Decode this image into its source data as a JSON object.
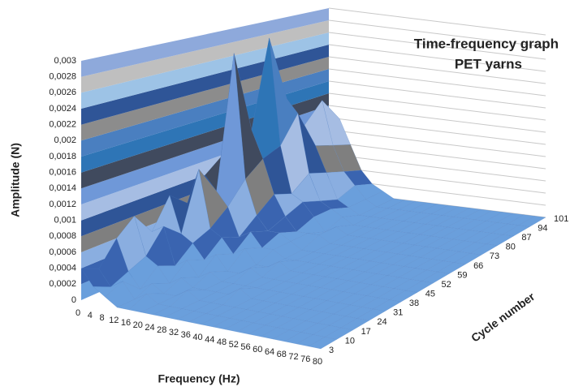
{
  "chart_data": {
    "type": "surface",
    "title": "Time-frequency graph",
    "subtitle": "PET yarns",
    "x_label": "Frequency (Hz)",
    "depth_label": "Cycle number",
    "z_label": "Amplitude (N)",
    "x": [
      0,
      4,
      8,
      12,
      16,
      20,
      24,
      28,
      32,
      36,
      40,
      44,
      48,
      52,
      56,
      60,
      64,
      68,
      72,
      76,
      80
    ],
    "depth": [
      3,
      10,
      17,
      24,
      31,
      38,
      45,
      52,
      59,
      66,
      73,
      80,
      87,
      94,
      101
    ],
    "zlim": [
      0,
      0.003
    ],
    "zticks": [
      0,
      {
        "value": 0.0002,
        "label": "0,0002"
      },
      {
        "value": 0.0004,
        "label": "0,0004"
      },
      {
        "value": 0.0006,
        "label": "0,0006"
      },
      {
        "value": 0.0008,
        "label": "0,0008"
      },
      {
        "value": 0.001,
        "label": "0,001"
      },
      {
        "value": 0.0012,
        "label": "0,0012"
      },
      {
        "value": 0.0014,
        "label": "0,0014"
      },
      {
        "value": 0.0016,
        "label": "0,0016"
      },
      {
        "value": 0.0018,
        "label": "0,0018"
      },
      {
        "value": 0.002,
        "label": "0,002"
      },
      {
        "value": 0.0022,
        "label": "0,0022"
      },
      {
        "value": 0.0024,
        "label": "0,0024"
      },
      {
        "value": 0.0026,
        "label": "0,0026"
      },
      {
        "value": 0.0028,
        "label": "0,0028"
      },
      {
        "value": 0.003,
        "label": "0,003"
      }
    ],
    "band_colors": [
      "#6a9fdc",
      "#3a64b0",
      "#8aaee0",
      "#7f7f7f",
      "#2f5597",
      "#a6bde3",
      "#6f98d8",
      "#404a5e",
      "#2e75b6",
      "#4a7fc0",
      "#8c8c8c",
      "#2f5597",
      "#9dc3e6",
      "#bfbfbf",
      "#8ea9db"
    ],
    "values": [
      [
        0.0004,
        0.0002,
        0.0001,
        0,
        0,
        0,
        0,
        0,
        0,
        0,
        0,
        0,
        0,
        0,
        0,
        0,
        0,
        0,
        0,
        0,
        0
      ],
      [
        0.0003,
        0.0001,
        0.0002,
        0,
        0.0001,
        0,
        0,
        0,
        0,
        0,
        0,
        0,
        0,
        0,
        0,
        0,
        0,
        0,
        0,
        0,
        0
      ],
      [
        0.0006,
        0.0002,
        0,
        0.0001,
        0,
        0,
        0.0001,
        0,
        0,
        0,
        0,
        0,
        0,
        0,
        0,
        0,
        0,
        0,
        0,
        0,
        0
      ],
      [
        0.0008,
        0.0003,
        0.0002,
        0,
        0.0001,
        0,
        0,
        0,
        0,
        0.0001,
        0,
        0,
        0,
        0,
        0,
        0,
        0,
        0,
        0,
        0,
        0
      ],
      [
        0.0005,
        0.0006,
        0.0001,
        0.0002,
        0,
        0.0001,
        0,
        0,
        0,
        0,
        0,
        0,
        0,
        0,
        0,
        0,
        0,
        0,
        0,
        0,
        0
      ],
      [
        0.0009,
        0.0004,
        0.0003,
        0.0001,
        0.0002,
        0,
        0,
        0.0001,
        0,
        0,
        0,
        0,
        0,
        0,
        0,
        0,
        0,
        0,
        0,
        0,
        0
      ],
      [
        0.0007,
        0.0012,
        0.0004,
        0.0003,
        0.0001,
        0.0002,
        0,
        0,
        0.0001,
        0,
        0,
        0,
        0,
        0,
        0,
        0,
        0,
        0,
        0,
        0,
        0
      ],
      [
        0.001,
        0.0008,
        0.0006,
        0.0002,
        0.0003,
        0.0001,
        0.0001,
        0,
        0,
        0,
        0,
        0,
        0,
        0,
        0,
        0,
        0,
        0,
        0,
        0,
        0
      ],
      [
        0.0012,
        0.0027,
        0.0009,
        0.0004,
        0.0002,
        0.0002,
        0.0001,
        0,
        0,
        0,
        0,
        0,
        0,
        0,
        0,
        0,
        0,
        0,
        0,
        0,
        0
      ],
      [
        0.0014,
        0.0015,
        0.0011,
        0.0006,
        0.0003,
        0.0001,
        0.0001,
        0.0001,
        0,
        0,
        0,
        0,
        0,
        0,
        0,
        0,
        0,
        0,
        0,
        0,
        0
      ],
      [
        0.0013,
        0.0028,
        0.0012,
        0.0005,
        0.0004,
        0.0002,
        0,
        0.0001,
        0,
        0,
        0,
        0,
        0,
        0,
        0,
        0,
        0,
        0,
        0,
        0,
        0
      ],
      [
        0.0011,
        0.0018,
        0.0016,
        0.0007,
        0.0003,
        0.0002,
        0.0001,
        0,
        0,
        0,
        0,
        0,
        0,
        0,
        0,
        0,
        0,
        0,
        0,
        0,
        0
      ],
      [
        0.0009,
        0.0013,
        0.001,
        0.0006,
        0.0002,
        0.0001,
        0,
        0,
        0,
        0,
        0,
        0,
        0,
        0,
        0,
        0,
        0,
        0,
        0,
        0,
        0
      ],
      [
        0.0012,
        0.0016,
        0.0009,
        0.0005,
        0.0003,
        0.0001,
        0,
        0,
        0,
        0,
        0,
        0,
        0,
        0,
        0,
        0,
        0,
        0,
        0,
        0,
        0
      ],
      [
        0.001,
        0.0012,
        0.0008,
        0.0004,
        0.0002,
        0.0001,
        0,
        0,
        0,
        0,
        0,
        0,
        0,
        0,
        0,
        0,
        0,
        0,
        0,
        0,
        0
      ]
    ]
  }
}
